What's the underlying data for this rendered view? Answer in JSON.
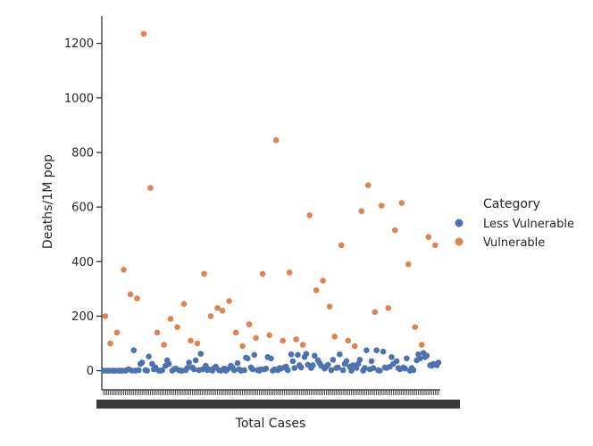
{
  "chart_data": {
    "type": "scatter",
    "title": "",
    "xlabel": "Total Cases",
    "ylabel": "Deaths/1M pop",
    "ylim": [
      -70,
      1300
    ],
    "yticks": [
      0,
      200,
      400,
      600,
      800,
      1000,
      1200
    ],
    "x_scale": "categorical",
    "legend": {
      "title": "Category",
      "placement": "right",
      "entries": [
        {
          "name": "Less Vulnerable",
          "color": "#4c72b0"
        },
        {
          "name": "Vulnerable",
          "color": "#dd8452"
        }
      ]
    },
    "series": [
      {
        "name": "Less Vulnerable",
        "color": "#4c72b0",
        "values": [
          0,
          0,
          0,
          0,
          0,
          0,
          0,
          0,
          0,
          0,
          3,
          5,
          0,
          75,
          0,
          2,
          25,
          30,
          2,
          0,
          52,
          25,
          5,
          12,
          0,
          0,
          2,
          18,
          38,
          25,
          0,
          5,
          8,
          2,
          0,
          0,
          2,
          10,
          30,
          12,
          5,
          38,
          2,
          62,
          5,
          18,
          2,
          5,
          0,
          10,
          15,
          2,
          0,
          8,
          0,
          5,
          18,
          12,
          2,
          28,
          5,
          0,
          2,
          48,
          45,
          12,
          5,
          58,
          2,
          0,
          5,
          5,
          8,
          50,
          45,
          0,
          5,
          2,
          10,
          8,
          12,
          15,
          2,
          60,
          35,
          10,
          58,
          20,
          12,
          50,
          62,
          22,
          10,
          20,
          55,
          38,
          28,
          18,
          8,
          15,
          22,
          2,
          40,
          10,
          12,
          60,
          2,
          25,
          35,
          15,
          0,
          20,
          10,
          25,
          40,
          0,
          10,
          75,
          5,
          35,
          10,
          75,
          2,
          0,
          70,
          12,
          10,
          15,
          50,
          25,
          35,
          10,
          5,
          12,
          8,
          45,
          0,
          10,
          2,
          38,
          60,
          45,
          65,
          50,
          55,
          20,
          18,
          25,
          20,
          30
        ]
      },
      {
        "name": "Vulnerable",
        "color": "#dd8452",
        "values": [
          200,
          100,
          140,
          370,
          280,
          265,
          1235,
          670,
          140,
          95,
          190,
          160,
          245,
          110,
          100,
          355,
          200,
          230,
          220,
          255,
          140,
          90,
          170,
          120,
          355,
          130,
          845,
          110,
          360,
          115,
          95,
          570,
          295,
          330,
          235,
          125,
          460,
          110,
          90,
          585,
          680,
          215,
          605,
          230,
          515,
          615,
          390,
          160,
          95,
          490,
          460
        ]
      }
    ]
  }
}
